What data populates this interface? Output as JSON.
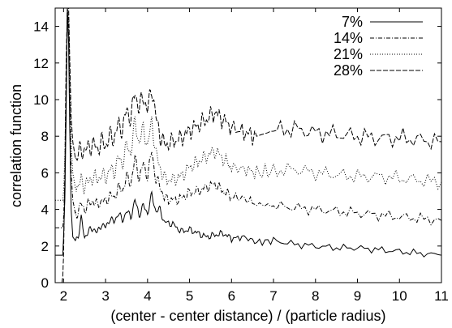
{
  "chart_data": {
    "type": "line",
    "title": "",
    "xlabel": "(center - center distance) / (particle radius)",
    "ylabel": "correlation function",
    "xlim": [
      1.8,
      11
    ],
    "ylim": [
      0,
      15
    ],
    "xticks": [
      "2",
      "3",
      "4",
      "5",
      "6",
      "7",
      "8",
      "9",
      "10",
      "11"
    ],
    "yticks": [
      "0",
      "2",
      "4",
      "6",
      "8",
      "10",
      "12",
      "14"
    ],
    "grid": false,
    "legend_position": "top-right",
    "series": [
      {
        "name": "7%",
        "dash": "",
        "x": [
          1.8,
          1.96,
          1.98,
          2.0,
          2.03,
          2.06,
          2.09,
          2.12,
          2.15,
          2.18,
          2.22,
          2.28,
          2.35,
          2.42,
          2.5,
          2.6,
          2.7,
          2.8,
          2.9,
          3.0,
          3.1,
          3.2,
          3.3,
          3.4,
          3.5,
          3.6,
          3.7,
          3.8,
          3.9,
          4.0,
          4.1,
          4.2,
          4.3,
          4.4,
          4.6,
          4.8,
          5.0,
          5.2,
          5.4,
          5.6,
          5.8,
          6.0,
          6.3,
          6.6,
          7.0,
          7.5,
          8.0,
          8.5,
          9.0,
          9.5,
          10.0,
          10.5,
          11.0
        ],
        "y": [
          1.5,
          1.5,
          1.5,
          2.5,
          4.5,
          9.0,
          15.0,
          13.0,
          8.0,
          4.0,
          2.5,
          2.3,
          2.6,
          3.5,
          2.5,
          2.8,
          3.0,
          2.7,
          3.2,
          3.0,
          3.5,
          3.3,
          3.8,
          3.4,
          3.9,
          3.6,
          4.5,
          3.7,
          4.2,
          3.8,
          4.8,
          3.9,
          4.0,
          3.3,
          3.2,
          2.8,
          2.9,
          2.7,
          2.5,
          2.6,
          2.7,
          2.4,
          2.5,
          2.2,
          2.3,
          2.1,
          2.0,
          1.9,
          1.9,
          1.8,
          1.7,
          1.6,
          1.5
        ]
      },
      {
        "name": "14%",
        "dash": "5,2,1,2",
        "x": [
          1.8,
          1.96,
          1.98,
          2.0,
          2.03,
          2.06,
          2.09,
          2.12,
          2.15,
          2.18,
          2.22,
          2.28,
          2.35,
          2.42,
          2.5,
          2.6,
          2.7,
          2.8,
          2.9,
          3.0,
          3.1,
          3.2,
          3.3,
          3.4,
          3.5,
          3.6,
          3.7,
          3.8,
          3.9,
          4.0,
          4.1,
          4.2,
          4.3,
          4.4,
          4.6,
          4.8,
          5.0,
          5.2,
          5.4,
          5.6,
          5.8,
          6.0,
          6.3,
          6.6,
          7.0,
          7.5,
          8.0,
          8.5,
          9.0,
          9.5,
          10.0,
          10.5,
          11.0
        ],
        "y": [
          3.0,
          3.0,
          3.0,
          3.5,
          5.5,
          10.0,
          15.0,
          14.0,
          10.0,
          6.0,
          4.5,
          3.8,
          3.9,
          4.3,
          4.0,
          4.3,
          4.5,
          4.2,
          4.5,
          4.4,
          4.8,
          4.6,
          5.2,
          5.0,
          5.8,
          5.4,
          6.8,
          5.7,
          6.5,
          5.8,
          7.2,
          5.6,
          5.3,
          4.6,
          4.5,
          4.6,
          4.9,
          5.0,
          5.2,
          5.4,
          5.0,
          4.7,
          4.6,
          4.3,
          4.2,
          4.1,
          4.0,
          3.9,
          3.8,
          3.7,
          3.6,
          3.5,
          3.4
        ]
      },
      {
        "name": "21%",
        "dash": "1,2",
        "x": [
          1.8,
          1.96,
          1.98,
          2.0,
          2.03,
          2.06,
          2.09,
          2.12,
          2.15,
          2.18,
          2.22,
          2.28,
          2.35,
          2.42,
          2.5,
          2.6,
          2.7,
          2.8,
          2.9,
          3.0,
          3.1,
          3.2,
          3.3,
          3.4,
          3.5,
          3.6,
          3.7,
          3.8,
          3.9,
          4.0,
          4.1,
          4.2,
          4.3,
          4.4,
          4.6,
          4.8,
          5.0,
          5.2,
          5.4,
          5.6,
          5.8,
          6.0,
          6.3,
          6.6,
          7.0,
          7.5,
          8.0,
          8.5,
          9.0,
          9.5,
          10.0,
          10.5,
          11.0
        ],
        "y": [
          4.5,
          4.5,
          4.5,
          5.0,
          7.0,
          11.0,
          15.0,
          14.5,
          11.0,
          7.5,
          6.0,
          5.2,
          5.2,
          5.6,
          5.3,
          5.5,
          5.8,
          5.6,
          5.9,
          5.7,
          6.2,
          6.0,
          6.8,
          6.5,
          7.5,
          7.1,
          8.8,
          7.6,
          8.5,
          7.4,
          8.9,
          7.0,
          6.3,
          5.7,
          5.6,
          5.8,
          6.3,
          6.6,
          6.9,
          7.2,
          6.8,
          6.3,
          6.2,
          6.0,
          6.1,
          6.2,
          6.0,
          5.9,
          5.8,
          5.8,
          5.7,
          5.6,
          5.5
        ]
      },
      {
        "name": "28%",
        "dash": "6,2",
        "x": [
          1.8,
          1.96,
          1.98,
          2.0,
          2.03,
          2.06,
          2.09,
          2.12,
          2.15,
          2.18,
          2.22,
          2.28,
          2.35,
          2.42,
          2.5,
          2.6,
          2.7,
          2.8,
          2.9,
          3.0,
          3.1,
          3.2,
          3.3,
          3.4,
          3.5,
          3.6,
          3.7,
          3.8,
          3.9,
          4.0,
          4.1,
          4.2,
          4.3,
          4.4,
          4.6,
          4.8,
          5.0,
          5.2,
          5.4,
          5.6,
          5.8,
          6.0,
          6.3,
          6.6,
          7.0,
          7.5,
          8.0,
          8.5,
          9.0,
          9.5,
          10.0,
          10.5,
          11.0
        ],
        "y": [
          0.0,
          0.0,
          0.3,
          1.5,
          6.0,
          12.0,
          15.0,
          15.0,
          12.0,
          9.0,
          7.7,
          6.8,
          7.0,
          7.3,
          7.2,
          7.4,
          7.6,
          7.3,
          7.7,
          7.5,
          8.0,
          7.9,
          8.6,
          8.4,
          9.4,
          9.0,
          10.4,
          9.5,
          10.2,
          9.4,
          10.7,
          9.0,
          8.1,
          7.5,
          7.7,
          7.9,
          8.3,
          8.6,
          8.9,
          9.3,
          8.9,
          8.5,
          8.2,
          8.0,
          8.3,
          8.4,
          8.2,
          8.1,
          8.0,
          7.9,
          7.9,
          7.8,
          7.7
        ]
      }
    ]
  }
}
